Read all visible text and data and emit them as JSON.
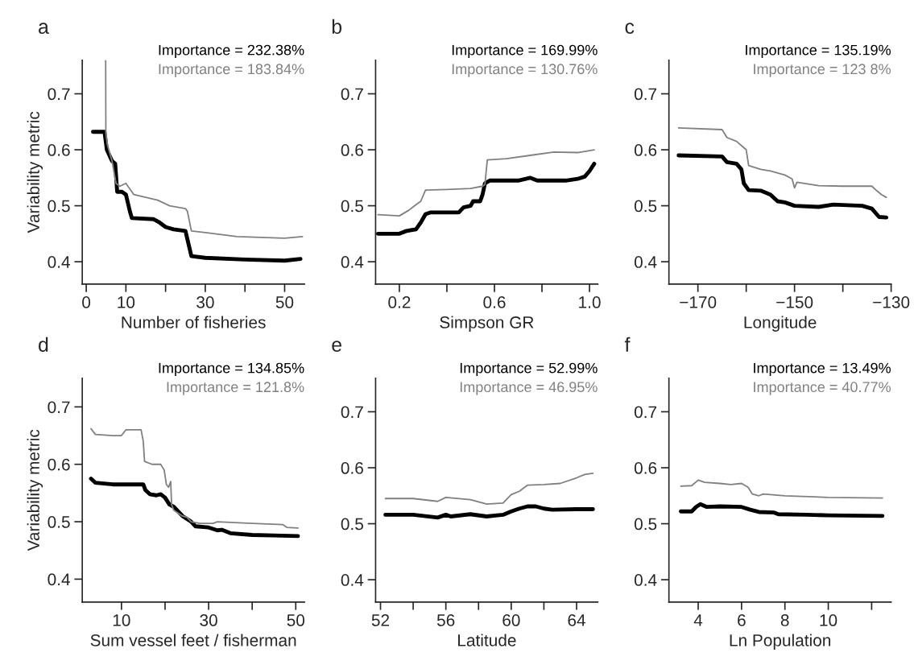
{
  "chart_data": [
    {
      "type": "line",
      "title": "a",
      "xlabel": "Number of fisheries",
      "ylabel": "Variability metric",
      "annotations": [
        "Importance = 232.38%",
        "Importance = 183.84%"
      ],
      "xlim": [
        -1,
        55
      ],
      "xticks": [
        0,
        10,
        {
          "value": 20,
          "label": null
        },
        30,
        {
          "value": 40,
          "label": null
        },
        50
      ],
      "ylim": [
        0.36,
        0.76
      ],
      "yticks": [
        0.4,
        0.5,
        0.6,
        0.7
      ],
      "series": [
        {
          "color": "#000000",
          "x": [
            1.7,
            4.6,
            5.2,
            6.5,
            7.3,
            7.8,
            9,
            10,
            11,
            11.5,
            17,
            18.5,
            20,
            22,
            25,
            26.5,
            30,
            40,
            50,
            54
          ],
          "values": [
            0.632,
            0.632,
            0.6,
            0.58,
            0.575,
            0.525,
            0.525,
            0.52,
            0.49,
            0.478,
            0.476,
            0.47,
            0.462,
            0.458,
            0.455,
            0.41,
            0.407,
            0.404,
            0.402,
            0.405
          ]
        },
        {
          "color": "#808080",
          "x": [
            4.9,
            4.95,
            5.3,
            6.5,
            7.5,
            8.5,
            10,
            11,
            12,
            15,
            18,
            21,
            25,
            25.5,
            26.5,
            30,
            38,
            50,
            54.5
          ],
          "values": [
            0.76,
            0.63,
            0.61,
            0.58,
            0.54,
            0.535,
            0.54,
            0.53,
            0.52,
            0.515,
            0.51,
            0.5,
            0.495,
            0.49,
            0.455,
            0.452,
            0.445,
            0.442,
            0.445
          ]
        }
      ]
    },
    {
      "type": "line",
      "title": "b",
      "xlabel": "Simpson GR",
      "annotations": [
        "Importance = 169.99%",
        "Importance = 130.76%"
      ],
      "xlim": [
        0.1,
        1.035
      ],
      "xticks": [
        0.2,
        {
          "value": 0.4,
          "label": null
        },
        0.6,
        {
          "value": 0.8,
          "label": null
        },
        {
          "value": 1.0,
          "label": "1.0"
        }
      ],
      "ylim": [
        0.36,
        0.76
      ],
      "yticks": [
        0.4,
        0.5,
        0.6,
        0.7
      ],
      "series": [
        {
          "color": "#000000",
          "x": [
            0.11,
            0.2,
            0.23,
            0.27,
            0.29,
            0.31,
            0.33,
            0.45,
            0.47,
            0.5,
            0.51,
            0.54,
            0.55,
            0.56,
            0.58,
            0.7,
            0.75,
            0.78,
            0.9,
            0.95,
            0.98,
            1.0,
            1.02
          ],
          "values": [
            0.45,
            0.45,
            0.455,
            0.458,
            0.47,
            0.485,
            0.488,
            0.488,
            0.497,
            0.5,
            0.508,
            0.508,
            0.52,
            0.54,
            0.545,
            0.545,
            0.55,
            0.545,
            0.545,
            0.548,
            0.552,
            0.562,
            0.575
          ]
        },
        {
          "color": "#808080",
          "x": [
            0.11,
            0.2,
            0.24,
            0.27,
            0.29,
            0.31,
            0.4,
            0.5,
            0.55,
            0.56,
            0.57,
            0.65,
            0.75,
            0.85,
            0.95,
            1.02
          ],
          "values": [
            0.484,
            0.482,
            0.492,
            0.502,
            0.508,
            0.528,
            0.529,
            0.531,
            0.535,
            0.538,
            0.582,
            0.584,
            0.59,
            0.596,
            0.595,
            0.6
          ]
        }
      ]
    },
    {
      "type": "line",
      "title": "c",
      "xlabel": "Longitude",
      "annotations": [
        "Importance = 135.19%",
        "Importance = 123 8%"
      ],
      "xlim": [
        -176,
        -130
      ],
      "xticks": [
        {
          "value": -170,
          "label": "−170"
        },
        {
          "value": -160,
          "label": null
        },
        {
          "value": -150,
          "label": "−150"
        },
        {
          "value": -140,
          "label": null
        },
        {
          "value": -130,
          "label": "−130"
        }
      ],
      "ylim": [
        0.36,
        0.76
      ],
      "yticks": [
        0.4,
        0.5,
        0.6,
        0.7
      ],
      "series": [
        {
          "color": "#000000",
          "x": [
            -174,
            -165,
            -164,
            -162,
            -161,
            -160.5,
            -159.5,
            -157,
            -155,
            -153.5,
            -152,
            -150,
            -145,
            -142,
            -136,
            -134,
            -132.5,
            -131
          ],
          "values": [
            0.59,
            0.588,
            0.578,
            0.575,
            0.565,
            0.54,
            0.528,
            0.527,
            0.52,
            0.508,
            0.506,
            0.5,
            0.498,
            0.502,
            0.5,
            0.495,
            0.48,
            0.479
          ]
        },
        {
          "color": "#808080",
          "x": [
            -174,
            -165,
            -164,
            -162,
            -160,
            -159.5,
            -157,
            -155,
            -152,
            -150.5,
            -150,
            -149.5,
            -145,
            -140,
            -134,
            -133,
            -132,
            -131
          ],
          "values": [
            0.639,
            0.636,
            0.622,
            0.615,
            0.6,
            0.572,
            0.565,
            0.562,
            0.555,
            0.548,
            0.532,
            0.542,
            0.536,
            0.535,
            0.535,
            0.527,
            0.52,
            0.515
          ]
        }
      ]
    },
    {
      "type": "line",
      "title": "d",
      "xlabel": "Sum vessel feet / fisherman",
      "ylabel": "Variability metric",
      "annotations": [
        "Importance = 134.85%",
        "Importance = 121.8%"
      ],
      "xlim": [
        1,
        52
      ],
      "xticks": [
        10,
        {
          "value": 20,
          "label": null
        },
        30,
        {
          "value": 40,
          "label": null
        },
        50
      ],
      "ylim": [
        0.36,
        0.75
      ],
      "yticks": [
        0.4,
        0.5,
        0.6,
        0.7
      ],
      "series": [
        {
          "color": "#000000",
          "x": [
            3,
            4,
            8,
            15,
            15.5,
            16.5,
            18,
            19,
            20,
            21,
            22,
            23,
            24,
            26,
            27,
            30,
            32,
            33,
            35,
            40,
            45,
            50.5
          ],
          "values": [
            0.575,
            0.568,
            0.565,
            0.565,
            0.555,
            0.548,
            0.546,
            0.548,
            0.542,
            0.53,
            0.526,
            0.518,
            0.51,
            0.5,
            0.492,
            0.49,
            0.485,
            0.486,
            0.48,
            0.477,
            0.476,
            0.475
          ]
        },
        {
          "color": "#808080",
          "x": [
            3,
            4,
            8,
            10,
            11,
            14.5,
            15,
            15.3,
            17,
            19,
            19.8,
            20.3,
            20.8,
            21.3,
            21.5,
            22,
            24,
            25,
            26,
            28,
            31,
            32,
            40,
            47,
            48,
            50.5
          ],
          "values": [
            0.662,
            0.652,
            0.65,
            0.65,
            0.66,
            0.66,
            0.64,
            0.605,
            0.6,
            0.6,
            0.59,
            0.565,
            0.56,
            0.57,
            0.53,
            0.52,
            0.51,
            0.508,
            0.5,
            0.497,
            0.497,
            0.5,
            0.497,
            0.495,
            0.49,
            0.489
          ]
        }
      ]
    },
    {
      "type": "line",
      "title": "e",
      "xlabel": "Latitude",
      "annotations": [
        "Importance = 52.99%",
        "Importance = 46.95%"
      ],
      "xlim": [
        51.7,
        65.3
      ],
      "xticks": [
        52,
        {
          "value": 54,
          "label": null
        },
        56,
        {
          "value": 58,
          "label": null
        },
        60,
        {
          "value": 62,
          "label": null
        },
        64
      ],
      "ylim": [
        0.36,
        0.76
      ],
      "yticks": [
        0.4,
        0.5,
        0.6,
        0.7
      ],
      "series": [
        {
          "color": "#000000",
          "x": [
            52.3,
            54,
            55.5,
            56,
            56.3,
            57.5,
            58.5,
            59.5,
            60,
            60.5,
            61,
            61.5,
            62,
            62.5,
            64,
            65
          ],
          "values": [
            0.516,
            0.516,
            0.511,
            0.516,
            0.513,
            0.517,
            0.513,
            0.516,
            0.522,
            0.527,
            0.531,
            0.531,
            0.527,
            0.525,
            0.526,
            0.526
          ]
        },
        {
          "color": "#808080",
          "x": [
            52.3,
            54,
            55.5,
            56,
            57.5,
            58.5,
            59.5,
            60,
            60.5,
            61,
            62,
            63,
            64,
            64.5,
            65
          ],
          "values": [
            0.545,
            0.545,
            0.54,
            0.547,
            0.543,
            0.535,
            0.537,
            0.552,
            0.558,
            0.569,
            0.57,
            0.572,
            0.582,
            0.588,
            0.59
          ]
        }
      ]
    },
    {
      "type": "line",
      "title": "f",
      "xlabel": "Ln Population",
      "annotations": [
        "Importance = 13.49%",
        "Importance = 40.77%"
      ],
      "xlim": [
        2.65,
        12.9
      ],
      "xticks": [
        4,
        6,
        8,
        10,
        {
          "value": 12,
          "label": null
        }
      ],
      "ylim": [
        0.36,
        0.76
      ],
      "yticks": [
        0.4,
        0.5,
        0.6,
        0.7
      ],
      "series": [
        {
          "color": "#000000",
          "x": [
            3.2,
            3.7,
            3.9,
            4.1,
            4.4,
            5,
            6,
            6.4,
            6.8,
            7.5,
            7.7,
            9,
            10,
            12.5
          ],
          "values": [
            0.522,
            0.522,
            0.53,
            0.535,
            0.53,
            0.531,
            0.53,
            0.525,
            0.521,
            0.52,
            0.517,
            0.516,
            0.515,
            0.514
          ]
        },
        {
          "color": "#808080",
          "x": [
            3.2,
            3.7,
            4,
            4.3,
            5,
            5.5,
            6,
            6.3,
            6.5,
            6.8,
            7,
            8,
            10,
            12.5
          ],
          "values": [
            0.567,
            0.568,
            0.578,
            0.574,
            0.572,
            0.57,
            0.572,
            0.565,
            0.553,
            0.55,
            0.553,
            0.55,
            0.547,
            0.546
          ]
        }
      ]
    }
  ]
}
